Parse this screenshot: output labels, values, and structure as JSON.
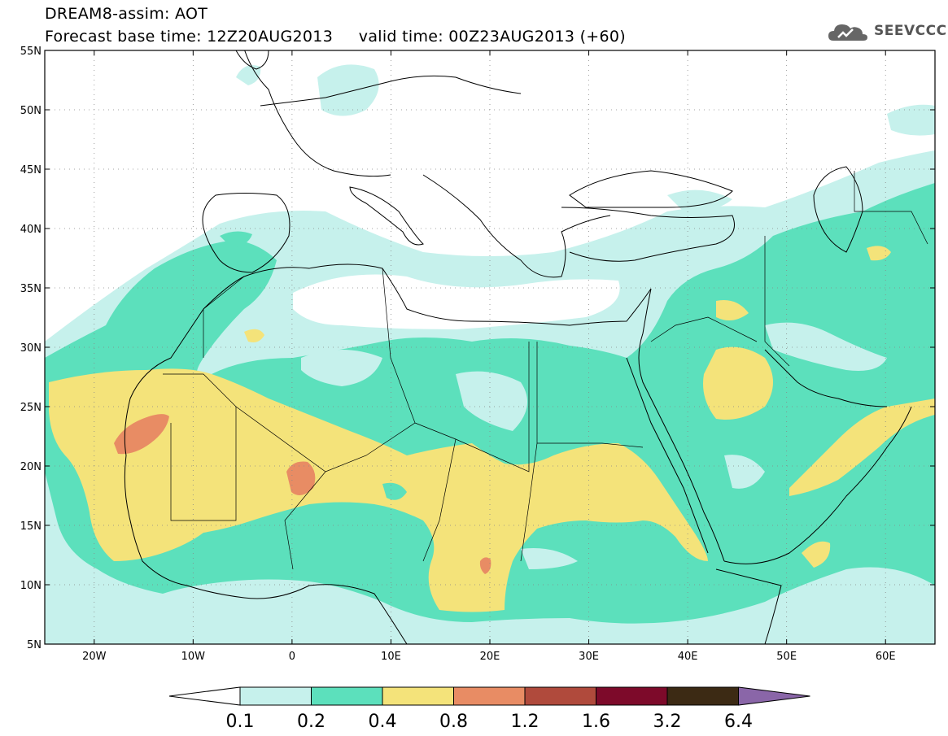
{
  "header": {
    "title_line1": "DREAM8-assim: AOT",
    "title_line2": "Forecast base time: 12Z20AUG2013     valid time: 00Z23AUG2013 (+60)",
    "logo_text": "SEEVCCC"
  },
  "map": {
    "lon_range": [
      -25,
      65
    ],
    "lat_range": [
      5,
      55
    ],
    "lon_ticks": [
      {
        "value": -20,
        "label": "20W"
      },
      {
        "value": -10,
        "label": "10W"
      },
      {
        "value": 0,
        "label": "0"
      },
      {
        "value": 10,
        "label": "10E"
      },
      {
        "value": 20,
        "label": "20E"
      },
      {
        "value": 30,
        "label": "30E"
      },
      {
        "value": 40,
        "label": "40E"
      },
      {
        "value": 50,
        "label": "50E"
      },
      {
        "value": 60,
        "label": "60E"
      }
    ],
    "lat_ticks": [
      {
        "value": 55,
        "label": "55N"
      },
      {
        "value": 50,
        "label": "50N"
      },
      {
        "value": 45,
        "label": "45N"
      },
      {
        "value": 40,
        "label": "40N"
      },
      {
        "value": 35,
        "label": "35N"
      },
      {
        "value": 30,
        "label": "30N"
      },
      {
        "value": 25,
        "label": "25N"
      },
      {
        "value": 20,
        "label": "20N"
      },
      {
        "value": 15,
        "label": "15N"
      },
      {
        "value": 10,
        "label": "10N"
      },
      {
        "value": 5,
        "label": "5N"
      }
    ],
    "grid": true
  },
  "colorbar": {
    "labels": [
      "0.1",
      "0.2",
      "0.4",
      "0.8",
      "1.2",
      "1.6",
      "3.2",
      "6.4"
    ],
    "colors": [
      "#c6f1ec",
      "#5ce0bc",
      "#f4e37a",
      "#e88c64",
      "#b04a3c",
      "#7d0a2a",
      "#3c2a14",
      "#8a66a8"
    ]
  },
  "colors": {
    "level_01": "#c6f1ec",
    "level_02": "#5ce0bc",
    "level_04": "#f4e37a",
    "level_08": "#e88c64",
    "coast": "#000000"
  }
}
